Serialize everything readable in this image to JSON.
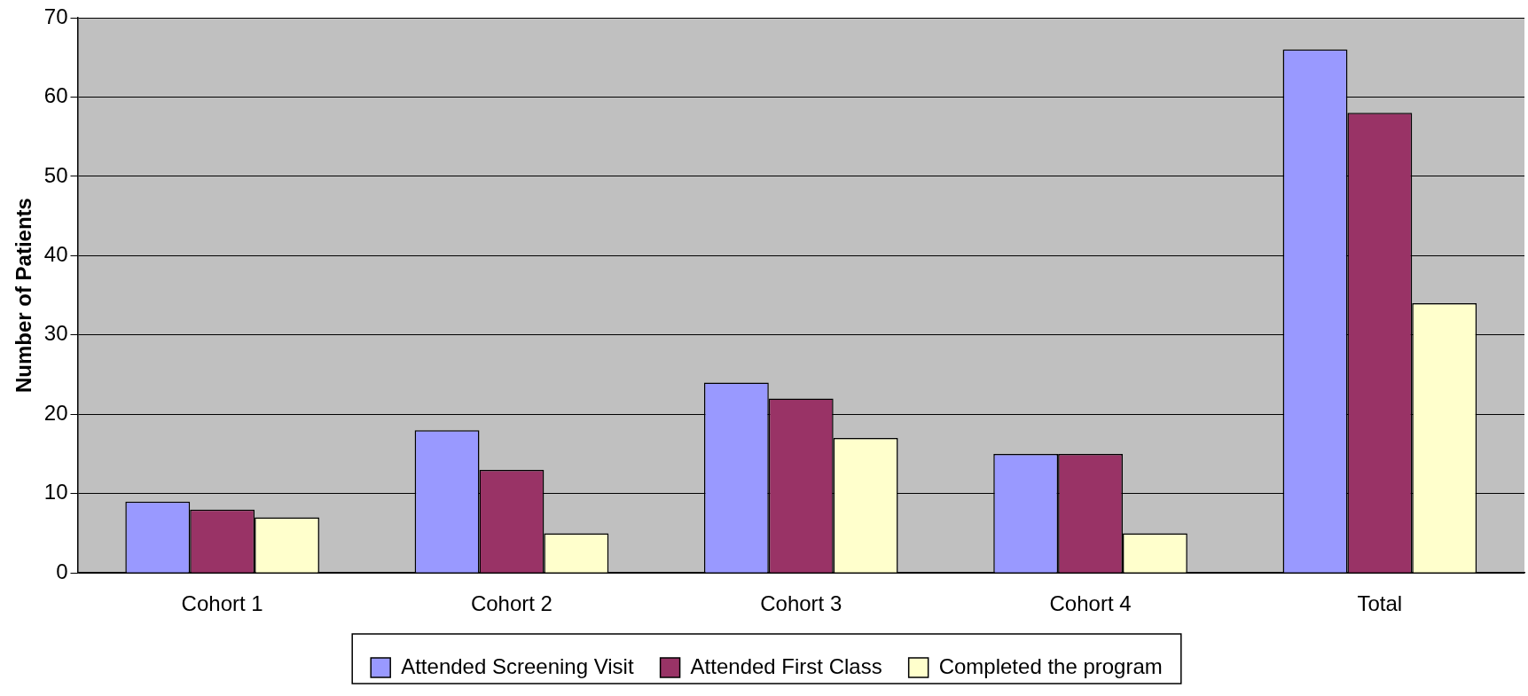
{
  "chart_data": {
    "type": "bar",
    "ylabel": "Number of Patients",
    "categories": [
      "Cohort 1",
      "Cohort 2",
      "Cohort 3",
      "Cohort 4",
      "Total"
    ],
    "series": [
      {
        "name": "Attended Screening Visit",
        "color": "#9999ff",
        "values": [
          9,
          18,
          24,
          15,
          66
        ]
      },
      {
        "name": "Attended First Class",
        "color": "#993366",
        "values": [
          8,
          13,
          22,
          15,
          58
        ]
      },
      {
        "name": "Completed the program",
        "color": "#ffffcc",
        "values": [
          7,
          5,
          17,
          5,
          34
        ]
      }
    ],
    "ylim": [
      0,
      70
    ],
    "yticks": [
      0,
      10,
      20,
      30,
      40,
      50,
      60,
      70
    ],
    "grid": "y",
    "legend": "bottom"
  }
}
